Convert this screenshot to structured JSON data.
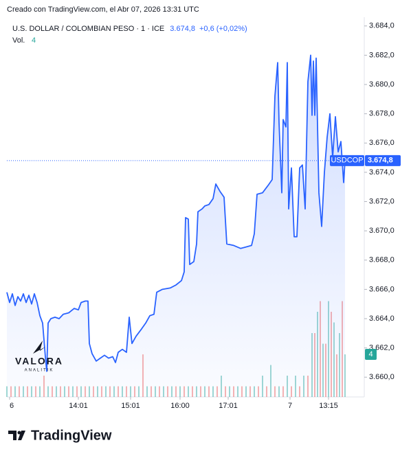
{
  "credit": "Creado con TradingView.com, el Abr 07, 2026 13:31 UTC",
  "footer": "TradingView",
  "watermark": {
    "name": "VALORA",
    "sub": "ANALITIK"
  },
  "chart_data": {
    "type": "line",
    "title": "U.S. DOLLAR / COLOMBIAN PESO · 1 · ICE",
    "change": "+0,6 (+0,02%)",
    "symbol": "USDCOP",
    "last": {
      "value": 3674.8,
      "label": "3.674,8"
    },
    "volume_title": "Vol.",
    "volume_last": 4,
    "color": "#2962ff",
    "x": [
      0,
      2,
      4,
      6,
      8,
      10,
      12,
      14,
      16,
      18,
      20,
      22,
      24,
      26,
      28,
      29,
      30,
      32,
      35,
      38,
      41,
      45,
      49,
      52,
      54,
      57,
      59,
      60,
      62,
      65,
      68,
      71,
      74,
      77,
      79,
      81,
      84,
      87,
      89,
      91,
      94,
      98,
      101,
      104,
      107,
      109,
      113,
      119,
      123,
      127,
      129,
      130,
      132,
      133,
      136,
      138,
      139,
      142,
      144,
      147,
      150,
      152,
      155,
      158,
      160,
      165,
      170,
      174,
      178,
      180,
      182,
      186,
      190,
      193,
      195,
      197,
      198,
      200,
      201,
      203,
      204,
      205,
      207,
      209,
      211,
      213,
      215,
      217,
      219,
      221,
      222,
      223,
      224,
      225,
      227,
      229,
      231,
      233,
      235,
      237,
      239,
      241,
      243,
      245,
      246
    ],
    "values": [
      3665.8,
      3665.1,
      3665.7,
      3664.9,
      3665.5,
      3665.2,
      3665.7,
      3665.1,
      3665.6,
      3665.0,
      3665.7,
      3665.1,
      3664.2,
      3663.7,
      3661.4,
      3660.4,
      3663.7,
      3664.0,
      3664.1,
      3664.0,
      3664.3,
      3664.4,
      3664.7,
      3664.6,
      3665.1,
      3665.2,
      3665.2,
      3662.3,
      3661.6,
      3661.1,
      3661.3,
      3661.5,
      3661.3,
      3661.4,
      3661.0,
      3661.7,
      3661.9,
      3661.7,
      3664.1,
      3662.3,
      3662.8,
      3663.3,
      3663.7,
      3664.2,
      3664.3,
      3665.8,
      3666.0,
      3666.1,
      3666.3,
      3666.6,
      3667.2,
      3670.9,
      3670.8,
      3667.7,
      3667.9,
      3669.1,
      3671.3,
      3671.5,
      3671.7,
      3671.8,
      3672.2,
      3673.2,
      3672.7,
      3672.3,
      3669.1,
      3669.0,
      3668.8,
      3668.9,
      3669.0,
      3669.8,
      3672.5,
      3672.6,
      3673.1,
      3673.5,
      3679.2,
      3681.5,
      3677.4,
      3672.6,
      3677.6,
      3677.1,
      3681.5,
      3671.5,
      3674.3,
      3669.6,
      3669.6,
      3674.3,
      3674.5,
      3671.5,
      3680.2,
      3682.0,
      3677.9,
      3681.6,
      3677.9,
      3681.8,
      3672.6,
      3670.3,
      3674.0,
      3676.4,
      3678.0,
      3675.0,
      3677.8,
      3675.4,
      3676.1,
      3673.3,
      3674.8
    ],
    "xlim": [
      0,
      260
    ],
    "xticks": [
      {
        "value": 2,
        "label": "6"
      },
      {
        "value": 52,
        "label": "14:01"
      },
      {
        "value": 90,
        "label": "15:01"
      },
      {
        "value": 126,
        "label": "16:00"
      },
      {
        "value": 161,
        "label": "17:01"
      },
      {
        "value": 206,
        "label": "7"
      },
      {
        "value": 234,
        "label": "13:15"
      }
    ],
    "ylim": [
      3658.65,
      3684.6
    ],
    "yticks": [
      {
        "value": 3660,
        "label": "3.660,0"
      },
      {
        "value": 3662,
        "label": "3.662,0"
      },
      {
        "value": 3664,
        "label": "3.664,0"
      },
      {
        "value": 3666,
        "label": "3.666,0"
      },
      {
        "value": 3668,
        "label": "3.668,0"
      },
      {
        "value": 3670,
        "label": "3.670,0"
      },
      {
        "value": 3672,
        "label": "3.672,0"
      },
      {
        "value": 3674,
        "label": "3.674,0"
      },
      {
        "value": 3676,
        "label": "3.676,0"
      },
      {
        "value": 3678,
        "label": "3.678,0"
      },
      {
        "value": 3680,
        "label": "3.680,0"
      },
      {
        "value": 3682,
        "label": "3.682,0"
      },
      {
        "value": 3684,
        "label": "3.684,0"
      }
    ],
    "grid": false,
    "volume_lim": [
      0,
      12
    ],
    "volume": [
      {
        "color": "#26a69a",
        "x": [
          0,
          6,
          12,
          18,
          24,
          30,
          36,
          42,
          48,
          54,
          60,
          66,
          72,
          78,
          84,
          90,
          96,
          102,
          108,
          114,
          120,
          126,
          132,
          138,
          144,
          150,
          156,
          162,
          168,
          174,
          180,
          186,
          192,
          198,
          204,
          210,
          216,
          222,
          226,
          230,
          234,
          238,
          242,
          246
        ],
        "values": [
          1,
          1,
          1,
          1,
          1,
          1,
          1,
          1,
          1,
          1,
          1,
          1,
          1,
          1,
          1,
          1,
          1,
          1,
          1,
          1,
          1,
          1,
          1,
          1,
          1,
          1,
          2,
          1,
          1,
          1,
          1,
          2,
          3,
          1,
          2,
          2,
          2,
          6,
          8,
          5,
          9,
          7,
          6,
          4
        ]
      },
      {
        "color": "#ef5350",
        "x": [
          3,
          9,
          15,
          21,
          27,
          33,
          39,
          45,
          51,
          57,
          63,
          69,
          75,
          81,
          87,
          93,
          99,
          105,
          111,
          117,
          123,
          129,
          135,
          141,
          147,
          153,
          159,
          165,
          171,
          177,
          183,
          189,
          195,
          201,
          207,
          213,
          219,
          224,
          228,
          232,
          236,
          240,
          244
        ],
        "values": [
          1,
          1,
          1,
          1,
          2,
          1,
          1,
          1,
          1,
          1,
          1,
          1,
          1,
          1,
          1,
          1,
          4,
          1,
          1,
          1,
          1,
          1,
          1,
          1,
          1,
          1,
          1,
          1,
          1,
          1,
          1,
          1,
          1,
          1,
          1,
          1,
          2,
          6,
          9,
          5,
          8,
          4,
          9
        ]
      }
    ]
  }
}
